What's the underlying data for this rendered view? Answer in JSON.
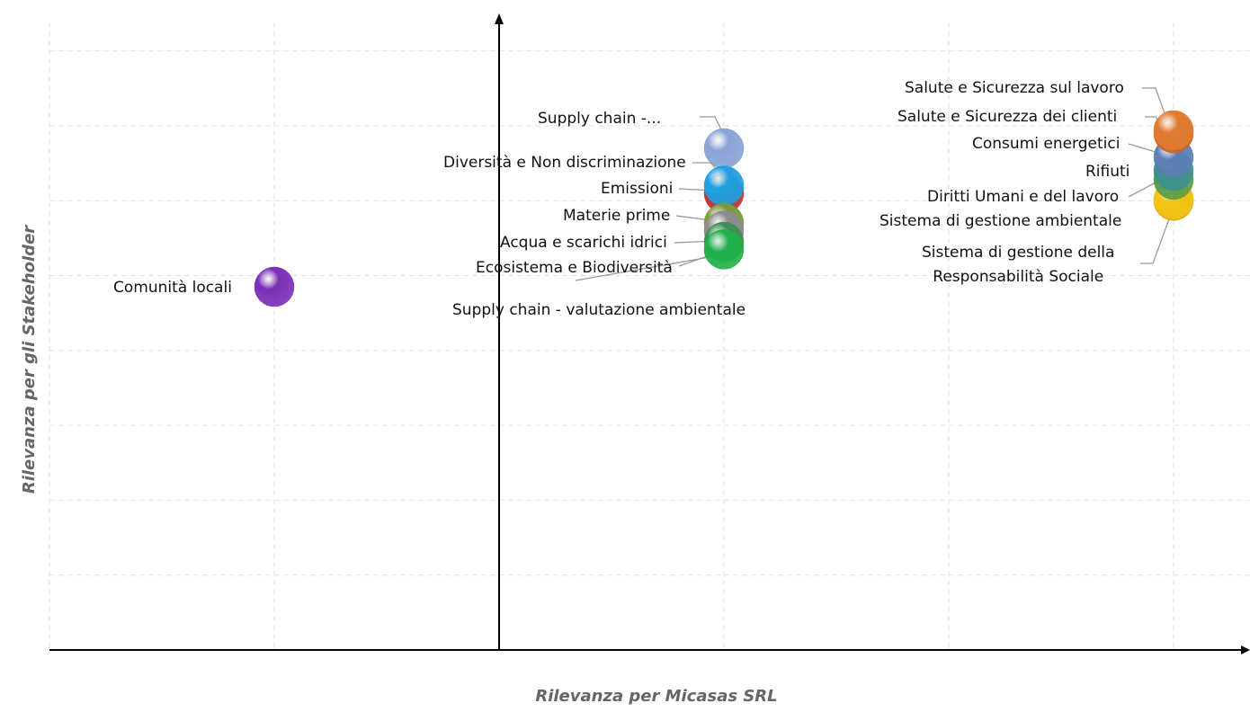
{
  "chart_data": {
    "type": "scatter",
    "x_label": "Rilevanza per Micasas SRL",
    "y_label": "Rilevanza per gli Stakeholder",
    "xlim": [
      0,
      5.34
    ],
    "ylim": [
      0,
      8.5
    ],
    "xticks": [
      0,
      1,
      2,
      3,
      4,
      5
    ],
    "yticks": [
      0,
      1,
      2,
      3,
      4,
      5,
      6,
      7,
      8
    ],
    "y_axis_at": 2,
    "grid": true,
    "points": [
      {
        "label": "Comunità locali",
        "x": 1,
        "y": 4.85,
        "color": "#7b2fb5"
      },
      {
        "label": "Supply chain -...",
        "x": 3,
        "y": 6.7,
        "color": "#8aa3d6"
      },
      {
        "label": "Diversità e Non discriminazione",
        "x": 3,
        "y": 6.1,
        "color": "#c0302c"
      },
      {
        "label": "Emissioni",
        "x": 3,
        "y": 6.2,
        "color": "#1ea0e0"
      },
      {
        "label": "Materie prime",
        "x": 3,
        "y": 5.7,
        "color": "#7a9a3c"
      },
      {
        "label": "Acqua e scarichi idrici",
        "x": 3,
        "y": 5.6,
        "color": "#8c8c8c"
      },
      {
        "label": "Supply chain - valutazione ambientale",
        "x": 3,
        "y": 5.45,
        "color": "#3e8e57"
      },
      {
        "label": "Ecosistema e Biodiversità",
        "x": 3,
        "y": 5.35,
        "color": "#22b04a"
      },
      {
        "label": "Sistema di gestione della\nResponsabilità Sociale",
        "x": 5,
        "y": 6.0,
        "color": "#d9a400"
      },
      {
        "label": "Sistema di gestione ambientale",
        "x": 5,
        "y": 6.02,
        "color": "#f2c417"
      },
      {
        "label": "Diritti Umani e del lavoro",
        "x": 5,
        "y": 6.28,
        "color": "#5a9e45"
      },
      {
        "label": "Rifiuti",
        "x": 5,
        "y": 6.4,
        "color": "#3f8f8f"
      },
      {
        "label": "Consumi energetici",
        "x": 5,
        "y": 6.58,
        "color": "#5b7fb5"
      },
      {
        "label": "Salute e Sicurezza dei clienti",
        "x": 5,
        "y": 6.9,
        "color": "#c8642a"
      },
      {
        "label": "Salute e Sicurezza sul lavoro",
        "x": 5,
        "y": 6.94,
        "color": "#e07a30"
      }
    ]
  }
}
